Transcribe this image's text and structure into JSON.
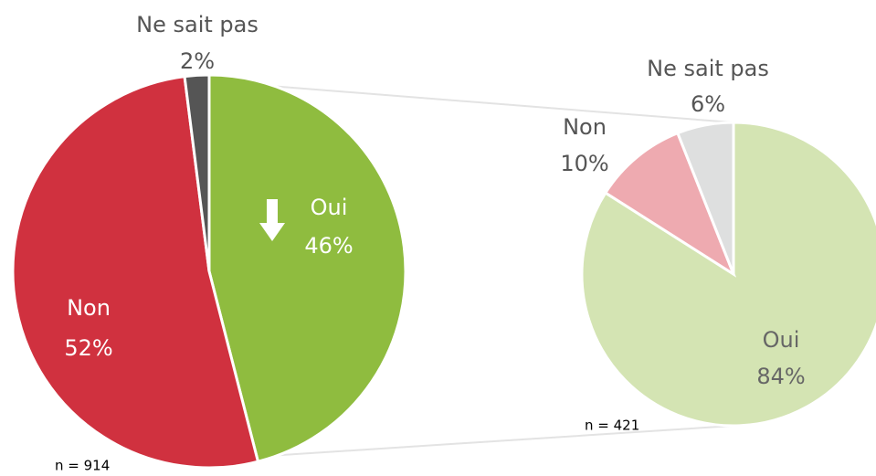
{
  "chart_data": [
    {
      "type": "pie",
      "categories": [
        "Oui",
        "Non",
        "Ne sait pas"
      ],
      "values": [
        46,
        52,
        2
      ],
      "value_labels": [
        "46%",
        "52%",
        "2%"
      ],
      "colors": [
        "#8fbc3f",
        "#d0313f",
        "#555555"
      ],
      "note": "n = 914"
    },
    {
      "type": "pie",
      "categories": [
        "Oui",
        "Non",
        "Ne sait pas"
      ],
      "values": [
        84,
        10,
        6
      ],
      "value_labels": [
        "84%",
        "10%",
        "6%"
      ],
      "colors": [
        "#d4e4b3",
        "#eeaab0",
        "#dedfdf"
      ],
      "note": "n = 421"
    }
  ]
}
